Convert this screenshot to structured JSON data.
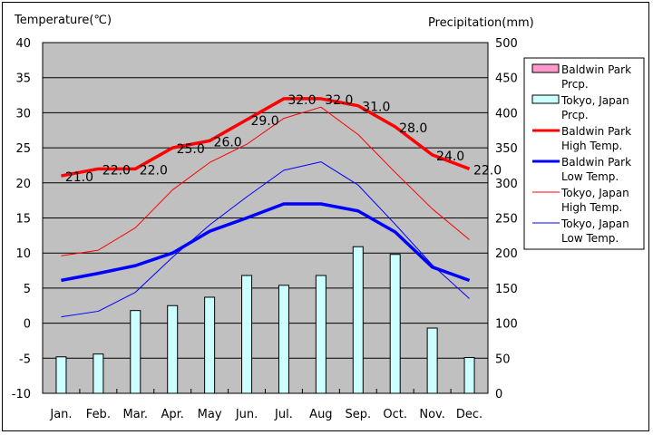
{
  "chart_data": {
    "type": "bar+line",
    "title": "",
    "y_left_label": "Temperature(℃)",
    "y_right_label": "Precipitation(mm)",
    "y_left_range": [
      -10,
      40
    ],
    "y_left_ticks": [
      "40",
      "35",
      "30",
      "25",
      "20",
      "15",
      "10",
      "5",
      "0",
      "-5",
      "-10"
    ],
    "y_right_range": [
      0,
      500
    ],
    "y_right_ticks": [
      "500",
      "450",
      "400",
      "350",
      "300",
      "250",
      "200",
      "150",
      "100",
      "50",
      "0"
    ],
    "grid": true,
    "legend_position": "right",
    "categories": [
      "Jan.",
      "Feb.",
      "Mar.",
      "Apr.",
      "May",
      "Jun.",
      "Jul.",
      "Aug",
      "Sep.",
      "Oct.",
      "Nov.",
      "Dec."
    ],
    "bar_series": [
      {
        "name": "Baldwin Park Prcp.",
        "legend_lines": [
          "Baldwin Park",
          "Prcp."
        ],
        "color": "#ff99cc",
        "axis": "right",
        "values": [
          0,
          0,
          0,
          0,
          0,
          0,
          0,
          0,
          0,
          0,
          0,
          0
        ]
      },
      {
        "name": "Tokyo, Japan Prcp.",
        "legend_lines": [
          "Tokyo, Japan",
          "Prcp."
        ],
        "color": "#ccffff",
        "axis": "right",
        "values": [
          52,
          56,
          118,
          125,
          137,
          168,
          154,
          168,
          209,
          198,
          93,
          51
        ]
      }
    ],
    "line_series": [
      {
        "name": "Baldwin Park High Temp.",
        "legend_lines": [
          "Baldwin Park",
          "High Temp."
        ],
        "color": "#ff0000",
        "width": "thick",
        "axis": "left",
        "values": [
          21.0,
          22.0,
          22.0,
          25.0,
          26.0,
          29.0,
          32.0,
          32.0,
          31.0,
          28.0,
          24.0,
          22.0
        ],
        "data_labels": [
          "21.0",
          "22.0",
          "22.0",
          "25.0",
          "26.0",
          "29.0",
          "32.0",
          "32.0",
          "31.0",
          "28.0",
          "24.0",
          "22.0"
        ]
      },
      {
        "name": "Baldwin Park Low Temp.",
        "legend_lines": [
          "Baldwin Park",
          "Low Temp."
        ],
        "color": "#0000ff",
        "width": "thick",
        "axis": "left",
        "values": [
          6.1,
          7.1,
          8.2,
          10.0,
          13.1,
          15.0,
          17.0,
          17.0,
          16.0,
          13.0,
          8.0,
          6.1
        ]
      },
      {
        "name": "Tokyo, Japan High Temp.",
        "legend_lines": [
          "Tokyo, Japan",
          "High Temp."
        ],
        "color": "#ff0000",
        "width": "thin",
        "axis": "left",
        "values": [
          9.6,
          10.4,
          13.6,
          19.0,
          22.9,
          25.5,
          29.2,
          30.8,
          26.9,
          21.5,
          16.3,
          11.9
        ]
      },
      {
        "name": "Tokyo, Japan Low Temp.",
        "legend_lines": [
          "Tokyo, Japan",
          "Low Temp."
        ],
        "color": "#0000ff",
        "width": "thin",
        "axis": "left",
        "values": [
          0.9,
          1.7,
          4.4,
          9.4,
          14.0,
          18.0,
          21.8,
          23.0,
          19.7,
          14.1,
          8.3,
          3.5
        ]
      }
    ]
  }
}
